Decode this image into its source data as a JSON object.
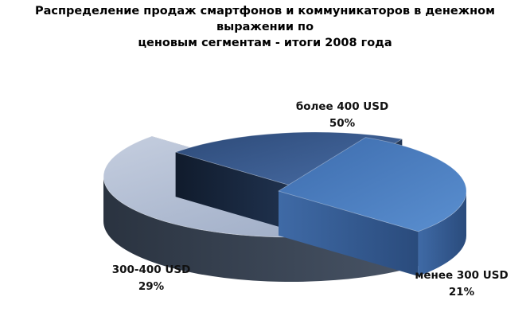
{
  "title_lines": [
    "Распределение продаж смартфонов и коммуникаторов в денежном выражении по",
    "ценовым сегментам - итоги 2008 года"
  ],
  "chart_data": {
    "type": "pie",
    "title": "Распределение продаж смартфонов и коммуникаторов в денежном выражении по ценовым сегментам - итоги 2008 года",
    "style": "3d-exploded",
    "legend": "none",
    "slices": [
      {
        "label": "более 400 USD",
        "value": 50,
        "value_label": "50%",
        "color": "#a3b0c8"
      },
      {
        "label": "менее 300 USD",
        "value": 21,
        "value_label": "21%",
        "color": "#3a5c8e"
      },
      {
        "label": "300-400 USD",
        "value": 29,
        "value_label": "29%",
        "color": "#4a7bb7"
      }
    ]
  }
}
